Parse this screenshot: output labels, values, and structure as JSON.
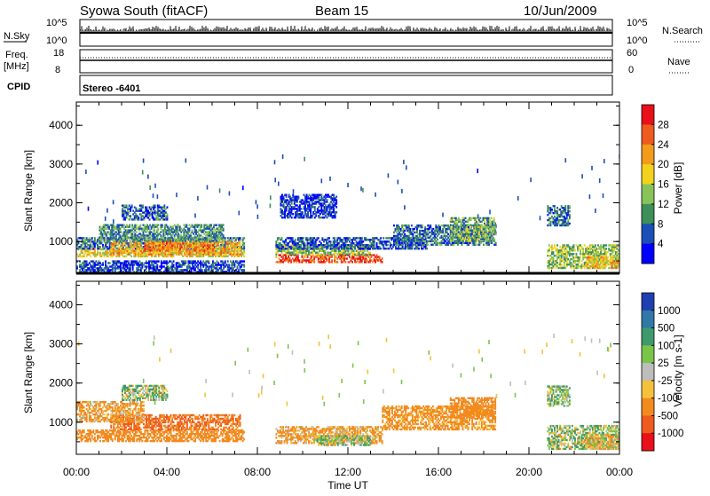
{
  "header": {
    "station": "Syowa South (fitACF)",
    "beam": "Beam 15",
    "date": "10/Jun/2009"
  },
  "nsky_panel": {
    "label": "N.Sky",
    "left_ticks": [
      "10^5",
      "10^0"
    ],
    "right_ticks": [
      "10^5",
      "10^0"
    ],
    "right_label": "N.Search"
  },
  "freq_panel": {
    "label_line1": "Freq.",
    "label_line2": "[MHz]",
    "left_ticks": [
      "18",
      "8"
    ],
    "right_ticks": [
      "60",
      "0"
    ],
    "right_label": "Nave"
  },
  "cpid_panel": {
    "label": "CPID",
    "mode": "Stereo -6401"
  },
  "axes": {
    "ylabel": "Slant Range [km]",
    "xlabel": "Time UT",
    "y_ticks": [
      "1000",
      "2000",
      "3000",
      "4000"
    ],
    "x_ticks": [
      "00:00",
      "04:00",
      "08:00",
      "12:00",
      "16:00",
      "20:00",
      "00:00"
    ]
  },
  "power_colorbar": {
    "label": "Power [dB]",
    "ticks": [
      "4",
      "8",
      "12",
      "16",
      "20",
      "24",
      "28"
    ],
    "colors": [
      "#0000ff",
      "#1a4fb8",
      "#3e8f5a",
      "#88c35a",
      "#f2d21c",
      "#f39b1a",
      "#ef5a1e",
      "#e8101a"
    ]
  },
  "velocity_colorbar": {
    "label": "Velocity [m s-1]",
    "ticks": [
      "1000",
      "500",
      "100",
      "25",
      "-25",
      "-100",
      "-500",
      "-1000"
    ],
    "colors": [
      "#1d3fb0",
      "#2f78a8",
      "#3e9a6a",
      "#7bc44a",
      "#bdbdbd",
      "#f5c13a",
      "#f28a1e",
      "#ef5a1e",
      "#e8101a"
    ]
  },
  "chart_data": {
    "type": "heatmap",
    "x_range_hours": [
      0,
      24
    ],
    "y_range_km": [
      180,
      4600
    ],
    "panels": [
      {
        "name": "Power",
        "units": "dB",
        "clim": [
          0,
          30
        ],
        "blobs": [
          {
            "t0": 0.0,
            "t1": 7.4,
            "r0": 600,
            "r1": 800,
            "v": 18
          },
          {
            "t0": 0.0,
            "t1": 7.4,
            "r0": 800,
            "r1": 1100,
            "v": 8
          },
          {
            "t0": 1.5,
            "t1": 7.2,
            "r0": 650,
            "r1": 1000,
            "v": 20
          },
          {
            "t0": 3.0,
            "t1": 6.0,
            "r0": 750,
            "r1": 1000,
            "v": 24
          },
          {
            "t0": 1.0,
            "t1": 6.5,
            "r0": 1000,
            "r1": 1450,
            "v": 10
          },
          {
            "t0": 2.0,
            "t1": 4.0,
            "r0": 1550,
            "r1": 1950,
            "v": 7
          },
          {
            "t0": 0.0,
            "t1": 7.4,
            "r0": 200,
            "r1": 500,
            "v": 5
          },
          {
            "t0": 8.8,
            "t1": 13.5,
            "r0": 450,
            "r1": 650,
            "v": 27
          },
          {
            "t0": 8.8,
            "t1": 13.0,
            "r0": 650,
            "r1": 900,
            "v": 14
          },
          {
            "t0": 8.8,
            "t1": 15.5,
            "r0": 800,
            "r1": 1100,
            "v": 6
          },
          {
            "t0": 9.0,
            "t1": 11.5,
            "r0": 1600,
            "r1": 2200,
            "v": 4
          },
          {
            "t0": 14.0,
            "t1": 18.5,
            "r0": 900,
            "r1": 1400,
            "v": 8
          },
          {
            "t0": 16.5,
            "t1": 18.5,
            "r0": 1000,
            "r1": 1600,
            "v": 12
          },
          {
            "t0": 20.8,
            "t1": 24.0,
            "r0": 300,
            "r1": 900,
            "v": 14
          },
          {
            "t0": 22.5,
            "t1": 24.0,
            "r0": 300,
            "r1": 600,
            "v": 20
          },
          {
            "t0": 20.8,
            "t1": 21.8,
            "r0": 1400,
            "r1": 1900,
            "v": 8
          }
        ]
      },
      {
        "name": "Velocity",
        "units": "m s-1",
        "clim": [
          -1000,
          1000
        ],
        "blobs": [
          {
            "t0": 0.0,
            "t1": 7.4,
            "r0": 500,
            "r1": 800,
            "v": -300
          },
          {
            "t0": 1.5,
            "t1": 7.2,
            "r0": 800,
            "r1": 1200,
            "v": -500
          },
          {
            "t0": 0.0,
            "t1": 3.0,
            "r0": 1000,
            "r1": 1500,
            "v": -150
          },
          {
            "t0": 2.0,
            "t1": 4.0,
            "r0": 1550,
            "r1": 1950,
            "v": 60
          },
          {
            "t0": 8.8,
            "t1": 13.5,
            "r0": 450,
            "r1": 900,
            "v": -150
          },
          {
            "t0": 10.5,
            "t1": 13.0,
            "r0": 400,
            "r1": 650,
            "v": 50
          },
          {
            "t0": 13.5,
            "t1": 18.5,
            "r0": 800,
            "r1": 1400,
            "v": -200
          },
          {
            "t0": 16.5,
            "t1": 18.5,
            "r0": 1100,
            "r1": 1600,
            "v": -300
          },
          {
            "t0": 20.8,
            "t1": 24.0,
            "r0": 300,
            "r1": 900,
            "v": 60
          },
          {
            "t0": 22.5,
            "t1": 24.0,
            "r0": 300,
            "r1": 700,
            "v": -80
          },
          {
            "t0": 20.8,
            "t1": 21.8,
            "r0": 1400,
            "r1": 1900,
            "v": 80
          }
        ]
      }
    ]
  }
}
